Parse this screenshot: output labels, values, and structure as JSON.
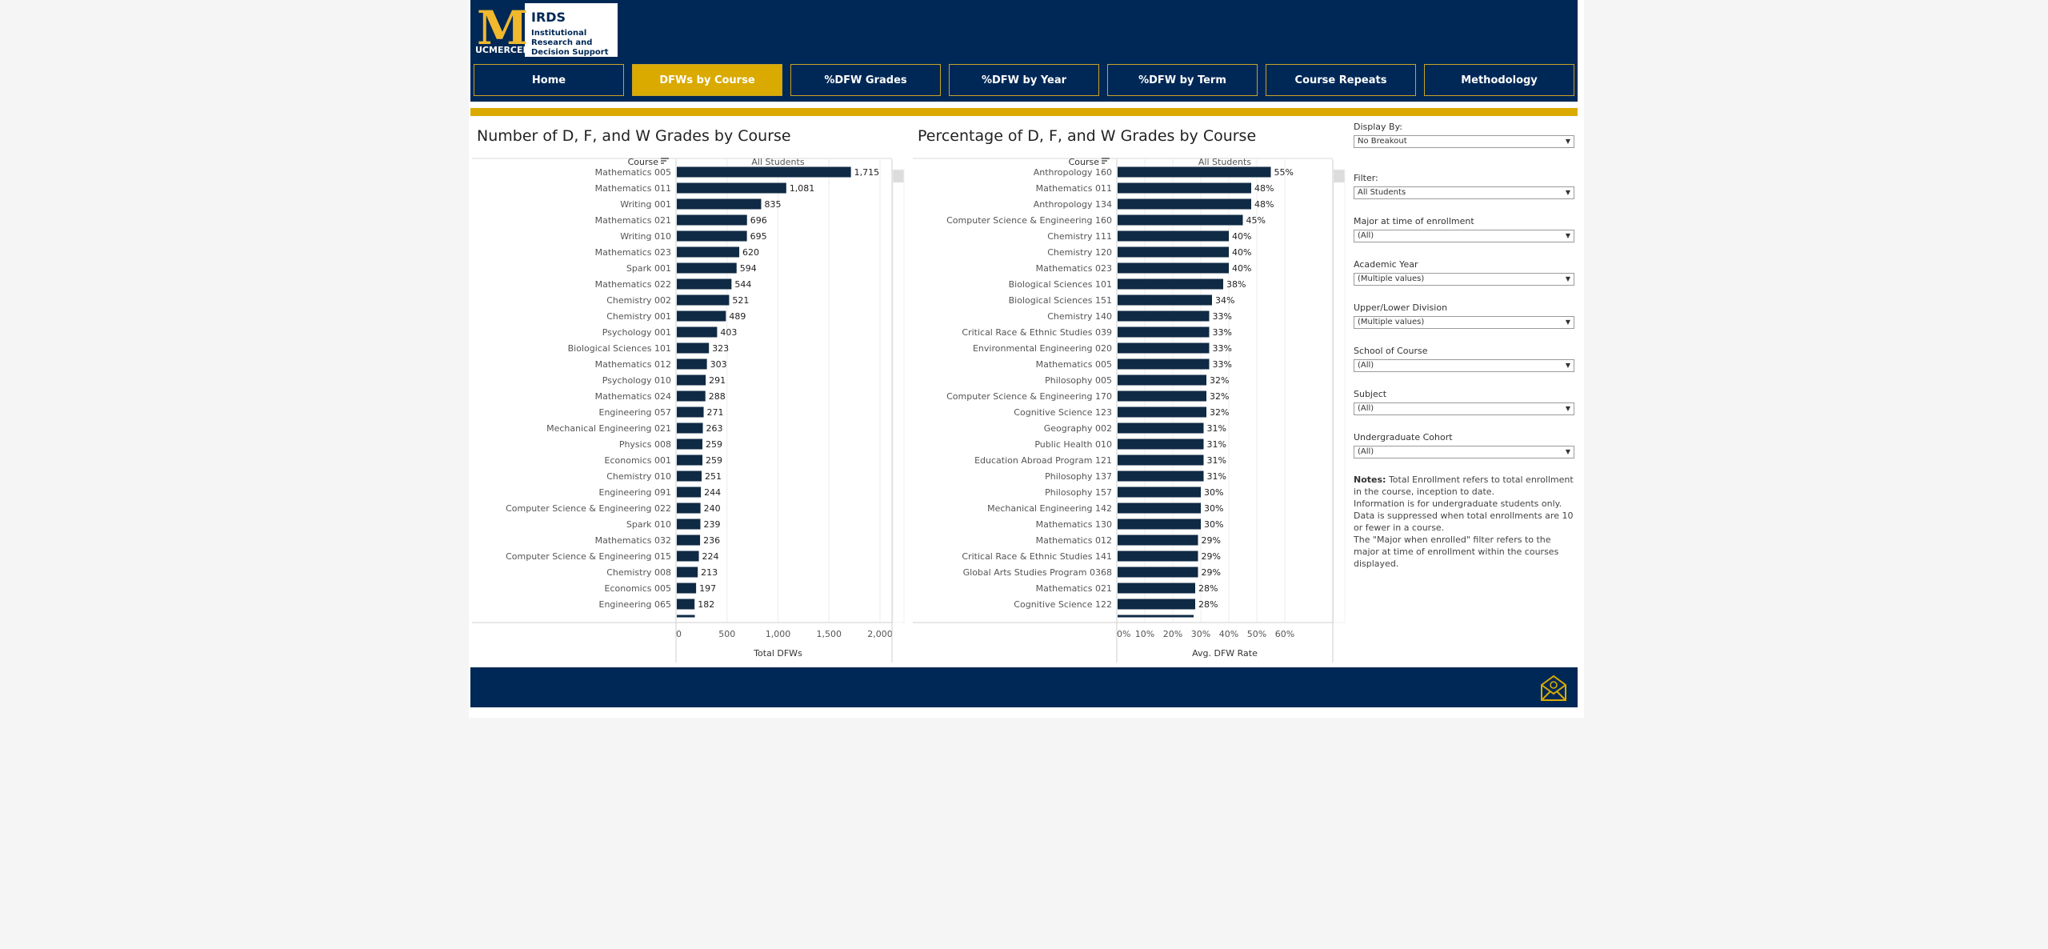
{
  "header": {
    "logo_mark": "M",
    "logo_wordmark": "UCMERCED",
    "logo_title": "IRDS",
    "logo_subtitle": "Institutional Research and Decision Support"
  },
  "nav": [
    {
      "label": "Home",
      "active": false
    },
    {
      "label": "DFWs by Course",
      "active": true
    },
    {
      "label": "%DFW Grades",
      "active": false
    },
    {
      "label": "%DFW by Year",
      "active": false
    },
    {
      "label": "%DFW by Term",
      "active": false
    },
    {
      "label": "Course Repeats",
      "active": false
    },
    {
      "label": "Methodology",
      "active": false
    }
  ],
  "colors": {
    "navy": "#002856",
    "gold": "#daaa00",
    "bar": "#0f2a44"
  },
  "chart_data": [
    {
      "type": "bar",
      "orientation": "horizontal",
      "title": "Number of D, F, and W Grades by Course",
      "row_header": "Course",
      "column_header": "All Students",
      "xlabel": "Total DFWs",
      "xlim": [
        0,
        2000
      ],
      "ticks": [
        "0",
        "500",
        "1,000",
        "1,500",
        "2,000"
      ],
      "categories": [
        "Mathematics 005",
        "Mathematics 011",
        "Writing 001",
        "Mathematics 021",
        "Writing 010",
        "Mathematics 023",
        "Spark 001",
        "Mathematics 022",
        "Chemistry 002",
        "Chemistry 001",
        "Psychology 001",
        "Biological Sciences 101",
        "Mathematics 012",
        "Psychology 010",
        "Mathematics 024",
        "Engineering 057",
        "Mechanical Engineering 021",
        "Physics 008",
        "Economics 001",
        "Chemistry 010",
        "Engineering 091",
        "Computer Science & Engineering 022",
        "Spark 010",
        "Mathematics 032",
        "Computer Science & Engineering 015",
        "Chemistry 008",
        "Economics 005",
        "Engineering 065"
      ],
      "values": [
        1715,
        1081,
        835,
        696,
        695,
        620,
        594,
        544,
        521,
        489,
        403,
        323,
        303,
        291,
        288,
        271,
        263,
        259,
        259,
        251,
        244,
        240,
        239,
        236,
        224,
        213,
        197,
        182
      ],
      "labels": [
        "1,715",
        "1,081",
        "835",
        "696",
        "695",
        "620",
        "594",
        "544",
        "521",
        "489",
        "403",
        "323",
        "303",
        "291",
        "288",
        "271",
        "263",
        "259",
        "259",
        "251",
        "244",
        "240",
        "239",
        "236",
        "224",
        "213",
        "197",
        "182"
      ]
    },
    {
      "type": "bar",
      "orientation": "horizontal",
      "title": "Percentage of D, F, and W Grades by Course",
      "row_header": "Course",
      "column_header": "All Students",
      "xlabel": "Avg. DFW Rate",
      "xlim": [
        0,
        60
      ],
      "ticks": [
        "0%",
        "10%",
        "20%",
        "30%",
        "40%",
        "50%",
        "60%"
      ],
      "categories": [
        "Anthropology 160",
        "Mathematics 011",
        "Anthropology 134",
        "Computer Science & Engineering 160",
        "Chemistry 111",
        "Chemistry 120",
        "Mathematics 023",
        "Biological Sciences 101",
        "Biological Sciences 151",
        "Chemistry 140",
        "Critical Race & Ethnic Studies 039",
        "Environmental Engineering 020",
        "Mathematics 005",
        "Philosophy 005",
        "Computer Science & Engineering 170",
        "Cognitive Science 123",
        "Geography 002",
        "Public Health 010",
        "Education Abroad Program 121",
        "Philosophy 137",
        "Philosophy 157",
        "Mechanical Engineering 142",
        "Mathematics 130",
        "Mathematics 012",
        "Critical Race & Ethnic Studies 141",
        "Global Arts Studies Program 0368",
        "Mathematics 021",
        "Cognitive Science 122"
      ],
      "values": [
        55,
        48,
        48,
        45,
        40,
        40,
        40,
        38,
        34,
        33,
        33,
        33,
        33,
        32,
        32,
        32,
        31,
        31,
        31,
        31,
        30,
        30,
        30,
        29,
        29,
        29,
        28,
        28
      ],
      "labels": [
        "55%",
        "48%",
        "48%",
        "45%",
        "40%",
        "40%",
        "40%",
        "38%",
        "34%",
        "33%",
        "33%",
        "33%",
        "33%",
        "32%",
        "32%",
        "32%",
        "31%",
        "31%",
        "31%",
        "31%",
        "30%",
        "30%",
        "30%",
        "29%",
        "29%",
        "29%",
        "28%",
        "28%"
      ]
    }
  ],
  "filters": [
    {
      "label": "Display By:",
      "value": "No Breakout"
    },
    {
      "label": "Filter:",
      "value": "All Students"
    },
    {
      "label": "Major at time of enrollment",
      "value": "(All)"
    },
    {
      "label": "Academic Year",
      "value": "(Multiple values)"
    },
    {
      "label": "Upper/Lower Division",
      "value": "(Multiple values)"
    },
    {
      "label": "School of Course",
      "value": "(All)"
    },
    {
      "label": "Subject",
      "value": "(All)"
    },
    {
      "label": "Undergraduate Cohort",
      "value": "(All)"
    }
  ],
  "notes": {
    "heading": "Notes:",
    "lines": [
      "Total Enrollment refers to total enrollment in the course, inception to date.",
      "Information is for undergraduate students only.",
      "Data is suppressed when total enrollments are 10 or fewer in a course.",
      "The \"Major when enrolled\" filter refers to the major at time of enrollment within the courses displayed."
    ]
  },
  "footer": {
    "icon": "mail-icon"
  }
}
